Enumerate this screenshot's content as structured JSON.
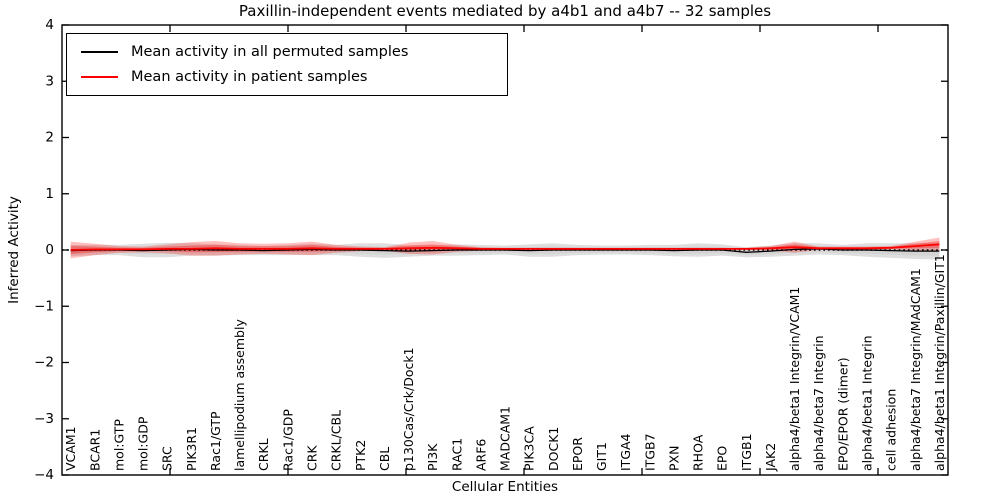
{
  "chart_data": {
    "type": "line",
    "title": "Paxillin-independent events mediated by a4b1 and a4b7 -- 32 samples",
    "xlabel": "Cellular Entities",
    "ylabel": "Inferred Activity",
    "ylim": [
      -4,
      4
    ],
    "yticks": [
      4,
      3,
      2,
      1,
      0,
      -1,
      -2,
      -3,
      -4
    ],
    "ytick_labels": [
      "4",
      "3",
      "2",
      "1",
      "0",
      "−1",
      "−2",
      "−3",
      "−4"
    ],
    "grid": false,
    "legend_position": "upper-left",
    "zero_reference_line": true,
    "categories": [
      "VCAM1",
      "BCAR1",
      "mol:GTP",
      "mol:GDP",
      "SRC",
      "PIK3R1",
      "Rac1/GTP",
      "lamellipodium assembly",
      "CRKL",
      "Rac1/GDP",
      "CRK",
      "CRKL/CBL",
      "PTK2",
      "CBL",
      "p130Cas/Crk/Dock1",
      "PI3K",
      "RAC1",
      "ARF6",
      "MADCAM1",
      "PIK3CA",
      "DOCK1",
      "EPOR",
      "GIT1",
      "ITGA4",
      "ITGB7",
      "PXN",
      "RHOA",
      "EPO",
      "ITGB1",
      "JAK2",
      "alpha4/beta1 Integrin/VCAM1",
      "alpha4/beta7 Integrin",
      "EPO/EPOR (dimer)",
      "alpha4/beta1 Integrin",
      "cell adhesion",
      "alpha4/beta7 Integrin/MAdCAM1",
      "alpha4/beta1 Integrin/Paxillin/GIT1"
    ],
    "series": [
      {
        "name": "Mean activity in all permuted samples",
        "color": "#000000",
        "band_color": "#888888",
        "values": [
          -0.01,
          0.0,
          0.0,
          -0.01,
          0.0,
          0.01,
          0.0,
          0.0,
          -0.01,
          0.0,
          0.01,
          0.0,
          0.0,
          -0.01,
          -0.02,
          -0.01,
          0.0,
          0.0,
          0.0,
          -0.01,
          0.0,
          0.0,
          0.0,
          0.0,
          0.0,
          -0.01,
          0.0,
          0.0,
          -0.04,
          -0.02,
          0.01,
          0.02,
          0.0,
          0.0,
          -0.01,
          -0.02,
          -0.02
        ],
        "band_halfwidth": [
          0.1,
          0.09,
          0.09,
          0.12,
          0.13,
          0.11,
          0.1,
          0.09,
          0.08,
          0.09,
          0.1,
          0.09,
          0.12,
          0.13,
          0.1,
          0.09,
          0.1,
          0.09,
          0.08,
          0.11,
          0.12,
          0.09,
          0.08,
          0.08,
          0.09,
          0.1,
          0.12,
          0.1,
          0.09,
          0.1,
          0.11,
          0.1,
          0.09,
          0.12,
          0.13,
          0.14,
          0.15
        ]
      },
      {
        "name": "Mean activity in patient samples",
        "color": "#ff0000",
        "band_color": "#ff0000",
        "values": [
          0.0,
          0.01,
          0.01,
          0.01,
          0.02,
          0.02,
          0.03,
          0.02,
          0.02,
          0.02,
          0.03,
          0.02,
          0.02,
          0.02,
          0.03,
          0.04,
          0.03,
          0.02,
          0.02,
          0.02,
          0.02,
          0.02,
          0.02,
          0.02,
          0.02,
          0.02,
          0.02,
          0.02,
          0.02,
          0.03,
          0.05,
          0.03,
          0.03,
          0.03,
          0.04,
          0.07,
          0.1
        ],
        "band_halfwidth": [
          0.15,
          0.1,
          0.06,
          0.05,
          0.08,
          0.12,
          0.13,
          0.1,
          0.09,
          0.1,
          0.12,
          0.07,
          0.04,
          0.03,
          0.1,
          0.12,
          0.06,
          0.03,
          0.02,
          0.02,
          0.02,
          0.02,
          0.02,
          0.02,
          0.02,
          0.02,
          0.02,
          0.02,
          0.02,
          0.04,
          0.1,
          0.03,
          0.03,
          0.03,
          0.03,
          0.08,
          0.12
        ]
      }
    ]
  },
  "legend": {
    "items": [
      {
        "label": "Mean activity in all permuted samples",
        "color": "#000000"
      },
      {
        "label": "Mean activity in patient samples",
        "color": "#ff0000"
      }
    ]
  }
}
